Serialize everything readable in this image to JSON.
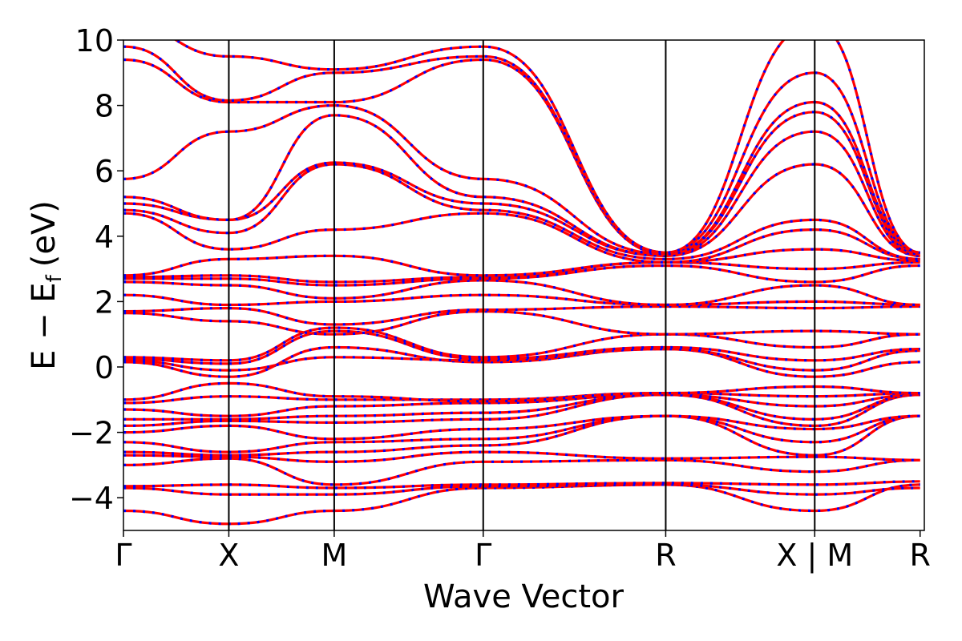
{
  "chart_data": {
    "type": "line",
    "title": "",
    "xlabel": "Wave Vector",
    "ylabel_main": "E − E",
    "ylabel_sub": "f",
    "ylabel_unit": "(eV)",
    "ylim": [
      -5,
      10
    ],
    "yticks": [
      {
        "value": -4,
        "label": "−4"
      },
      {
        "value": -2,
        "label": "−2"
      },
      {
        "value": 0,
        "label": "0"
      },
      {
        "value": 2,
        "label": "2"
      },
      {
        "value": 4,
        "label": "4"
      },
      {
        "value": 6,
        "label": "6"
      },
      {
        "value": 8,
        "label": "8"
      },
      {
        "value": 10,
        "label": "10"
      }
    ],
    "xlim": [
      0,
      7.6
    ],
    "kpoints": [
      {
        "x": 0.0,
        "label": "Γ"
      },
      {
        "x": 1.0,
        "label": "X"
      },
      {
        "x": 2.0,
        "label": "M"
      },
      {
        "x": 3.414,
        "label": "Γ"
      },
      {
        "x": 5.146,
        "label": "R"
      },
      {
        "x": 6.56,
        "label": "X | M"
      },
      {
        "x": 7.56,
        "label": "R"
      }
    ],
    "colors": {
      "primary": "#ff0000",
      "secondary": "#0000ff",
      "axis": "#000000"
    },
    "series": [
      {
        "values": [
          [
            0,
            -4.4
          ],
          [
            1,
            -4.8
          ],
          [
            2,
            -4.4
          ],
          [
            3.414,
            -3.7
          ],
          [
            5.146,
            -3.6
          ],
          [
            6.56,
            -4.4
          ],
          [
            7.56,
            -3.6
          ]
        ]
      },
      {
        "values": [
          [
            0,
            -3.7
          ],
          [
            1,
            -3.9
          ],
          [
            2,
            -3.9
          ],
          [
            3.414,
            -3.65
          ],
          [
            5.146,
            -3.6
          ],
          [
            6.56,
            -3.9
          ],
          [
            7.56,
            -3.7
          ]
        ]
      },
      {
        "values": [
          [
            0,
            -3.65
          ],
          [
            1,
            -3.6
          ],
          [
            2,
            -3.7
          ],
          [
            3.414,
            -3.6
          ],
          [
            5.146,
            -3.55
          ],
          [
            6.56,
            -3.6
          ],
          [
            7.56,
            -3.5
          ]
        ]
      },
      {
        "values": [
          [
            0,
            -3.0
          ],
          [
            1,
            -2.8
          ],
          [
            2,
            -3.6
          ],
          [
            3.414,
            -2.9
          ],
          [
            5.146,
            -2.85
          ],
          [
            6.56,
            -3.2
          ],
          [
            7.56,
            -2.85
          ]
        ]
      },
      {
        "values": [
          [
            0,
            -2.7
          ],
          [
            1,
            -2.75
          ],
          [
            2,
            -2.9
          ],
          [
            3.414,
            -2.6
          ],
          [
            5.146,
            -2.8
          ],
          [
            6.56,
            -2.75
          ],
          [
            7.56,
            -2.85
          ]
        ]
      },
      {
        "values": [
          [
            0,
            -2.6
          ],
          [
            1,
            -2.7
          ],
          [
            2,
            -2.6
          ],
          [
            3.414,
            -2.4
          ],
          [
            5.146,
            -1.5
          ],
          [
            6.56,
            -2.7
          ],
          [
            7.56,
            -1.5
          ]
        ]
      },
      {
        "values": [
          [
            0,
            -2.3
          ],
          [
            1,
            -2.6
          ],
          [
            2,
            -2.3
          ],
          [
            3.414,
            -2.2
          ],
          [
            5.146,
            -1.5
          ],
          [
            6.56,
            -2.3
          ],
          [
            7.56,
            -1.5
          ]
        ]
      },
      {
        "values": [
          [
            0,
            -2.0
          ],
          [
            1,
            -1.8
          ],
          [
            2,
            -2.2
          ],
          [
            3.414,
            -1.9
          ],
          [
            5.146,
            -1.5
          ],
          [
            6.56,
            -1.9
          ],
          [
            7.56,
            -1.5
          ]
        ]
      },
      {
        "values": [
          [
            0,
            -1.8
          ],
          [
            1,
            -1.65
          ],
          [
            2,
            -1.7
          ],
          [
            3.414,
            -1.6
          ],
          [
            5.146,
            -0.85
          ],
          [
            6.56,
            -1.8
          ],
          [
            7.56,
            -0.85
          ]
        ]
      },
      {
        "values": [
          [
            0,
            -1.6
          ],
          [
            1,
            -1.6
          ],
          [
            2,
            -1.5
          ],
          [
            3.414,
            -1.4
          ],
          [
            5.146,
            -0.85
          ],
          [
            6.56,
            -1.6
          ],
          [
            7.56,
            -0.85
          ]
        ]
      },
      {
        "values": [
          [
            0,
            -1.3
          ],
          [
            1,
            -1.5
          ],
          [
            2,
            -1.2
          ],
          [
            3.414,
            -1.1
          ],
          [
            5.146,
            -0.85
          ],
          [
            6.56,
            -1.2
          ],
          [
            7.56,
            -0.85
          ]
        ]
      },
      {
        "values": [
          [
            0,
            -1.1
          ],
          [
            1,
            -0.9
          ],
          [
            2,
            -1.0
          ],
          [
            3.414,
            -1.0
          ],
          [
            5.146,
            -0.8
          ],
          [
            6.56,
            -0.9
          ],
          [
            7.56,
            -0.8
          ]
        ]
      },
      {
        "values": [
          [
            0,
            -1.0
          ],
          [
            1,
            -0.5
          ],
          [
            2,
            -0.9
          ],
          [
            3.414,
            -1.05
          ],
          [
            5.146,
            -0.8
          ],
          [
            6.56,
            -0.6
          ],
          [
            7.56,
            -0.8
          ]
        ]
      },
      {
        "values": [
          [
            0,
            0.15
          ],
          [
            1,
            -0.3
          ],
          [
            2,
            0.6
          ],
          [
            3.414,
            0.15
          ],
          [
            5.146,
            0.55
          ],
          [
            6.56,
            -0.3
          ],
          [
            7.56,
            0.15
          ]
        ]
      },
      {
        "values": [
          [
            0,
            0.2
          ],
          [
            1,
            -0.1
          ],
          [
            2,
            0.3
          ],
          [
            3.414,
            0.2
          ],
          [
            5.146,
            0.55
          ],
          [
            6.56,
            -0.1
          ],
          [
            7.56,
            0.5
          ]
        ]
      },
      {
        "values": [
          [
            0,
            0.25
          ],
          [
            1,
            0.1
          ],
          [
            2,
            1.1
          ],
          [
            3.414,
            0.25
          ],
          [
            5.146,
            0.6
          ],
          [
            6.56,
            0.2
          ],
          [
            7.56,
            0.55
          ]
        ]
      },
      {
        "values": [
          [
            0,
            0.3
          ],
          [
            1,
            0.2
          ],
          [
            2,
            1.2
          ],
          [
            3.414,
            0.3
          ],
          [
            5.146,
            1.0
          ],
          [
            6.56,
            0.6
          ],
          [
            7.56,
            1.0
          ]
        ]
      },
      {
        "values": [
          [
            0,
            1.65
          ],
          [
            1,
            1.4
          ],
          [
            2,
            1.0
          ],
          [
            3.414,
            1.7
          ],
          [
            5.146,
            1.0
          ],
          [
            6.56,
            1.1
          ],
          [
            7.56,
            1.0
          ]
        ]
      },
      {
        "values": [
          [
            0,
            1.7
          ],
          [
            1,
            1.8
          ],
          [
            2,
            1.3
          ],
          [
            3.414,
            1.75
          ],
          [
            5.146,
            1.85
          ],
          [
            6.56,
            1.8
          ],
          [
            7.56,
            1.85
          ]
        ]
      },
      {
        "values": [
          [
            0,
            2.2
          ],
          [
            1,
            1.9
          ],
          [
            2,
            2.0
          ],
          [
            3.414,
            2.2
          ],
          [
            5.146,
            1.9
          ],
          [
            6.56,
            2.0
          ],
          [
            7.56,
            1.9
          ]
        ]
      },
      {
        "values": [
          [
            0,
            2.6
          ],
          [
            1,
            2.5
          ],
          [
            2,
            2.1
          ],
          [
            3.414,
            2.65
          ],
          [
            5.146,
            1.9
          ],
          [
            6.56,
            2.5
          ],
          [
            7.56,
            1.9
          ]
        ]
      },
      {
        "values": [
          [
            0,
            2.7
          ],
          [
            1,
            2.7
          ],
          [
            2,
            2.5
          ],
          [
            3.414,
            2.7
          ],
          [
            5.146,
            3.1
          ],
          [
            6.56,
            2.6
          ],
          [
            7.56,
            3.1
          ]
        ]
      },
      {
        "values": [
          [
            0,
            2.75
          ],
          [
            1,
            2.8
          ],
          [
            2,
            2.6
          ],
          [
            3.414,
            2.75
          ],
          [
            5.146,
            3.2
          ],
          [
            6.56,
            3.0
          ],
          [
            7.56,
            3.2
          ]
        ]
      },
      {
        "values": [
          [
            0,
            2.8
          ],
          [
            1,
            3.3
          ],
          [
            2,
            3.4
          ],
          [
            3.414,
            2.8
          ],
          [
            5.146,
            3.2
          ],
          [
            6.56,
            3.6
          ],
          [
            7.56,
            3.25
          ]
        ]
      },
      {
        "values": [
          [
            0,
            4.7
          ],
          [
            1,
            3.6
          ],
          [
            2,
            4.2
          ],
          [
            3.414,
            4.7
          ],
          [
            5.146,
            3.2
          ],
          [
            6.56,
            4.2
          ],
          [
            7.56,
            3.3
          ]
        ]
      },
      {
        "values": [
          [
            0,
            4.8
          ],
          [
            1,
            4.1
          ],
          [
            2,
            6.2
          ],
          [
            3.414,
            4.8
          ],
          [
            5.146,
            3.3
          ],
          [
            6.56,
            4.5
          ],
          [
            7.56,
            3.3
          ]
        ]
      },
      {
        "values": [
          [
            0,
            5.0
          ],
          [
            1,
            4.5
          ],
          [
            2,
            6.25
          ],
          [
            3.414,
            5.0
          ],
          [
            5.146,
            3.4
          ],
          [
            6.56,
            6.2
          ],
          [
            7.56,
            3.4
          ]
        ]
      },
      {
        "values": [
          [
            0,
            5.2
          ],
          [
            1,
            4.5
          ],
          [
            2,
            7.7
          ],
          [
            3.414,
            5.2
          ],
          [
            5.146,
            3.4
          ],
          [
            6.56,
            7.2
          ],
          [
            7.56,
            3.4
          ]
        ]
      },
      {
        "values": [
          [
            0,
            5.75
          ],
          [
            1,
            7.2
          ],
          [
            2,
            8.0
          ],
          [
            3.414,
            5.75
          ],
          [
            5.146,
            3.45
          ],
          [
            6.56,
            7.8
          ],
          [
            7.56,
            3.45
          ]
        ]
      },
      {
        "values": [
          [
            0,
            9.4
          ],
          [
            1,
            8.1
          ],
          [
            2,
            8.1
          ],
          [
            3.414,
            9.4
          ],
          [
            5.146,
            3.45
          ],
          [
            6.56,
            8.1
          ],
          [
            7.56,
            3.5
          ]
        ]
      },
      {
        "values": [
          [
            0,
            9.8
          ],
          [
            1,
            8.15
          ],
          [
            2,
            9.0
          ],
          [
            3.414,
            9.5
          ],
          [
            5.146,
            3.5
          ],
          [
            6.56,
            9.0
          ],
          [
            7.56,
            3.5
          ]
        ]
      },
      {
        "values": [
          [
            0,
            10.5
          ],
          [
            1,
            9.5
          ],
          [
            2,
            9.1
          ],
          [
            3.414,
            9.8
          ],
          [
            5.146,
            3.5
          ],
          [
            6.56,
            10.5
          ],
          [
            7.56,
            3.5
          ]
        ]
      }
    ]
  }
}
